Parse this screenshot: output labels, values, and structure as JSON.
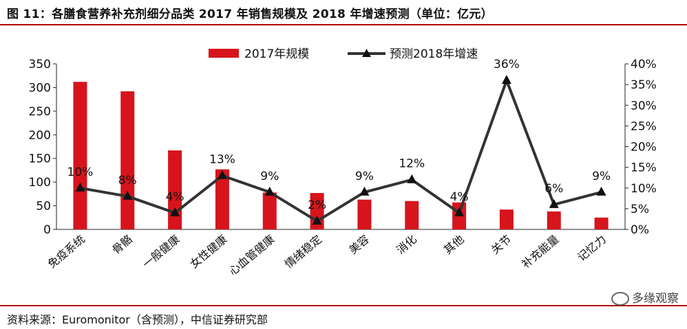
{
  "header": {
    "title": "图 11：各膳食营养补充剂细分品类 2017 年销售规模及 2018 年增速预测（单位：亿元）"
  },
  "footer": {
    "source": "资料来源：Euromonitor（含预测），中信证券研究部",
    "watermark": "多缘观察"
  },
  "colors": {
    "bar": "#d7141c",
    "line": "#333333",
    "rule": "#b30000"
  },
  "chart_data": {
    "type": "bar",
    "categories": [
      "免疫系统",
      "骨骼",
      "一般健康",
      "女性健康",
      "心血管健康",
      "情绪稳定",
      "美容",
      "消化",
      "其他",
      "关节",
      "补充能量",
      "记忆力"
    ],
    "series": [
      {
        "name": "2017年规模",
        "type": "bar",
        "axis": "left",
        "values": [
          312,
          292,
          167,
          127,
          78,
          77,
          63,
          60,
          57,
          42,
          38,
          25
        ]
      },
      {
        "name": "预测2018年增速",
        "type": "line",
        "axis": "right",
        "values": [
          10,
          8,
          4,
          13,
          9,
          2,
          9,
          12,
          4,
          36,
          6,
          9
        ],
        "labels": [
          "10%",
          "8%",
          "4%",
          "13%",
          "9%",
          "2%",
          "9%",
          "12%",
          "4%",
          "36%",
          "6%",
          "9%"
        ]
      }
    ],
    "y_left": {
      "ylim": [
        0,
        350
      ],
      "ticks": [
        "0",
        "50",
        "100",
        "150",
        "200",
        "250",
        "300",
        "350"
      ]
    },
    "y_right": {
      "ylim": [
        0,
        40
      ],
      "ticks": [
        "0%",
        "5%",
        "10%",
        "15%",
        "20%",
        "25%",
        "30%",
        "35%",
        "40%"
      ]
    },
    "legend_position": "top-center",
    "grid": false
  }
}
